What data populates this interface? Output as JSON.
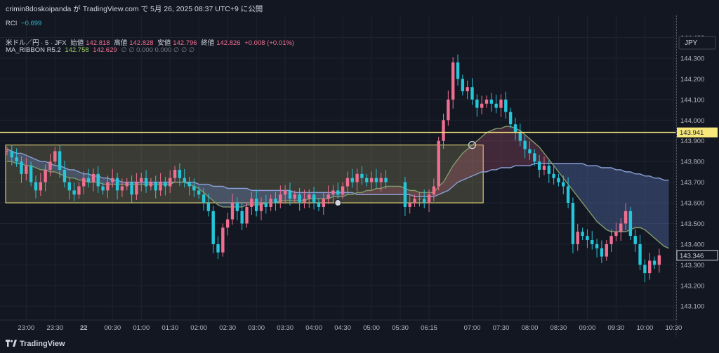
{
  "header": {
    "published": "crimin8doskoipanda が TradingView.com で 5月 26, 2025 08:37 UTC+9 に公開"
  },
  "rci": {
    "label": "RCI",
    "value": "−0.699"
  },
  "symbol": {
    "name": "米ドル／円 · 5 · JFX",
    "open_label": "始値",
    "open": "142.818",
    "high_label": "高値",
    "high": "142.828",
    "low_label": "安値",
    "low": "142.796",
    "close_label": "終値",
    "close": "142.826",
    "change": "+0.008 (+0.01%)"
  },
  "ribbon": {
    "label": "MA_RIBBON R5.2",
    "v1": "142.758",
    "v2": "142.629",
    "rest": "∅  ∅  0.000  0.000  ∅  ∅  ∅"
  },
  "currency": "JPY",
  "price_badges": {
    "yellow_line": "143.941",
    "last_price": "143.346"
  },
  "footer": {
    "brand": "TradingView"
  },
  "colors": {
    "background": "#131722",
    "up": "#ef6f91",
    "down": "#26c6da",
    "yellow": "#f7e87c",
    "ma_fast": "#8aa0d8",
    "ma_slow": "#e06a7a"
  },
  "chart_data": {
    "type": "candlestick",
    "y_axis": {
      "min": 143.06,
      "max": 144.48,
      "ticks": [
        "144.400",
        "144.300",
        "144.200",
        "144.100",
        "144.000",
        "143.900",
        "143.800",
        "143.700",
        "143.600",
        "143.500",
        "143.400",
        "143.300",
        "143.200",
        "143.100"
      ]
    },
    "x_ticks": [
      {
        "label": "23:00",
        "i": 4
      },
      {
        "label": "23:30",
        "i": 10
      },
      {
        "label": "22",
        "i": 16
      },
      {
        "label": "00:30",
        "i": 22
      },
      {
        "label": "01:00",
        "i": 28
      },
      {
        "label": "01:30",
        "i": 34
      },
      {
        "label": "02:00",
        "i": 40
      },
      {
        "label": "02:30",
        "i": 46
      },
      {
        "label": "03:00",
        "i": 52
      },
      {
        "label": "03:30",
        "i": 58
      },
      {
        "label": "04:00",
        "i": 64
      },
      {
        "label": "04:30",
        "i": 70
      },
      {
        "label": "05:00",
        "i": 76
      },
      {
        "label": "05:30",
        "i": 82
      },
      {
        "label": "06:15",
        "i": 88
      },
      {
        "label": "07:00",
        "i": 97
      },
      {
        "label": "07:30",
        "i": 103
      },
      {
        "label": "08:00",
        "i": 109
      },
      {
        "label": "08:30",
        "i": 115
      },
      {
        "label": "09:00",
        "i": 121
      },
      {
        "label": "09:30",
        "i": 127
      },
      {
        "label": "10:00",
        "i": 133
      },
      {
        "label": "10:30",
        "i": 139
      }
    ],
    "horizontal_line": 143.941,
    "range_box": {
      "from_i": 0,
      "to_i": 99,
      "top": 143.88,
      "bottom": 143.6
    },
    "closes": [
      143.85,
      143.82,
      143.8,
      143.74,
      143.78,
      143.7,
      143.66,
      143.7,
      143.76,
      143.8,
      143.85,
      143.76,
      143.7,
      143.66,
      143.64,
      143.68,
      143.72,
      143.7,
      143.74,
      143.68,
      143.66,
      143.7,
      143.72,
      143.66,
      143.68,
      143.7,
      143.64,
      143.7,
      143.72,
      143.68,
      143.7,
      143.66,
      143.7,
      143.68,
      143.72,
      143.76,
      143.72,
      143.7,
      143.68,
      143.66,
      143.64,
      143.6,
      143.56,
      143.4,
      143.36,
      143.48,
      143.52,
      143.6,
      143.56,
      143.5,
      143.58,
      143.62,
      143.56,
      143.6,
      143.58,
      143.62,
      143.6,
      143.64,
      143.66,
      143.62,
      143.64,
      143.6,
      143.62,
      143.64,
      143.6,
      143.58,
      143.62,
      143.64,
      143.66,
      143.64,
      143.68,
      143.72,
      143.7,
      143.74,
      143.72,
      143.7,
      143.72,
      143.7,
      143.72,
      143.7,
      null,
      null,
      null,
      143.58,
      143.6,
      143.62,
      143.62,
      143.6,
      143.64,
      143.68,
      143.9,
      144.0,
      144.1,
      144.28,
      144.2,
      144.14,
      144.16,
      144.1,
      144.06,
      144.08,
      144.1,
      144.08,
      144.06,
      144.1,
      144.04,
      143.98,
      143.94,
      143.9,
      143.86,
      143.84,
      143.8,
      143.76,
      143.78,
      143.74,
      143.72,
      143.7,
      143.68,
      143.6,
      143.4,
      143.46,
      143.44,
      143.42,
      143.4,
      143.38,
      143.34,
      143.4,
      143.44,
      143.46,
      143.5,
      143.56,
      143.44,
      143.4,
      143.3,
      143.26,
      143.32,
      143.3,
      143.346
    ],
    "ma_slow": [
      143.86,
      143.85,
      143.84,
      143.84,
      143.83,
      143.82,
      143.81,
      143.8,
      143.8,
      143.79,
      143.78,
      143.78,
      143.77,
      143.76,
      143.76,
      143.75,
      143.74,
      143.74,
      143.73,
      143.73,
      143.72,
      143.72,
      143.71,
      143.71,
      143.7,
      143.7,
      143.7,
      143.7,
      143.7,
      143.7,
      143.7,
      143.7,
      143.7,
      143.7,
      143.7,
      143.7,
      143.7,
      143.7,
      143.7,
      143.7,
      143.69,
      143.69,
      143.69,
      143.68,
      143.68,
      143.68,
      143.67,
      143.67,
      143.67,
      143.67,
      143.67,
      143.66,
      143.66,
      143.66,
      143.66,
      143.66,
      143.66,
      143.66,
      143.66,
      143.66,
      143.65,
      143.65,
      143.65,
      143.65,
      143.65,
      143.65,
      143.65,
      143.65,
      143.65,
      143.65,
      143.65,
      143.65,
      143.65,
      143.64,
      143.64,
      143.64,
      143.64,
      143.64,
      143.64,
      143.64,
      143.64,
      143.64,
      143.64,
      143.64,
      143.64,
      143.63,
      143.63,
      143.63,
      143.63,
      143.63,
      143.64,
      143.65,
      143.66,
      143.68,
      143.7,
      143.71,
      143.72,
      143.73,
      143.74,
      143.75,
      143.75,
      143.76,
      143.76,
      143.77,
      143.77,
      143.77,
      143.78,
      143.78,
      143.78,
      143.78,
      143.79,
      143.79,
      143.79,
      143.79,
      143.79,
      143.79,
      143.79,
      143.79,
      143.79,
      143.79,
      143.79,
      143.78,
      143.78,
      143.78,
      143.77,
      143.77,
      143.77,
      143.76,
      143.76,
      143.75,
      143.75,
      143.74,
      143.74,
      143.73,
      143.73,
      143.72,
      143.72,
      143.71,
      143.71
    ],
    "ma_fast": [
      143.8,
      143.8,
      143.79,
      143.79,
      143.78,
      143.78,
      143.77,
      143.76,
      143.76,
      143.75,
      143.75,
      143.74,
      143.73,
      143.72,
      143.72,
      143.71,
      143.71,
      143.7,
      143.7,
      143.7,
      143.69,
      143.69,
      143.69,
      143.69,
      143.69,
      143.69,
      143.69,
      143.69,
      143.69,
      143.69,
      143.69,
      143.69,
      143.69,
      143.69,
      143.69,
      143.7,
      143.7,
      143.7,
      143.69,
      143.68,
      143.67,
      143.65,
      143.63,
      143.61,
      143.59,
      143.58,
      143.58,
      143.58,
      143.58,
      143.58,
      143.59,
      143.59,
      143.59,
      143.59,
      143.6,
      143.6,
      143.6,
      143.61,
      143.61,
      143.61,
      143.61,
      143.61,
      143.61,
      143.62,
      143.62,
      143.62,
      143.62,
      143.62,
      143.63,
      143.63,
      143.63,
      143.64,
      143.64,
      143.65,
      143.65,
      143.66,
      143.66,
      143.67,
      143.67,
      143.68,
      143.68,
      143.68,
      143.68,
      143.67,
      143.66,
      143.66,
      143.65,
      143.65,
      143.65,
      143.65,
      143.68,
      143.7,
      143.74,
      143.78,
      143.81,
      143.84,
      143.86,
      143.88,
      143.9,
      143.92,
      143.94,
      143.95,
      143.96,
      143.96,
      143.97,
      143.97,
      143.96,
      143.95,
      143.93,
      143.91,
      143.89,
      143.87,
      143.84,
      143.81,
      143.78,
      143.75,
      143.72,
      143.69,
      143.66,
      143.63,
      143.6,
      143.57,
      143.54,
      143.51,
      143.49,
      143.47,
      143.46,
      143.46,
      143.46,
      143.46,
      143.47,
      143.48,
      143.48,
      143.47,
      143.45,
      143.43,
      143.41,
      143.39,
      143.38
    ]
  }
}
